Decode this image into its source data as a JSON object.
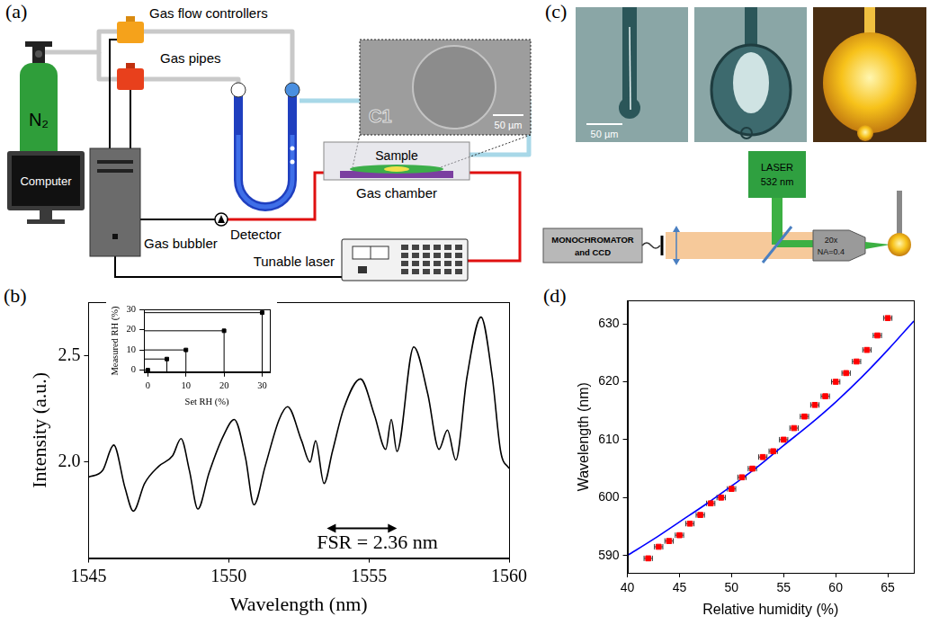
{
  "panel_labels": [
    "(a)",
    "(b)",
    "(c)",
    "(d)"
  ],
  "diagram": {
    "a": {
      "gas_flow_controllers": "Gas flow controllers",
      "cylinder": "N₂",
      "gas_pipes": "Gas pipes",
      "computer": "Computer",
      "gas_bubbler": "Gas bubbler",
      "detector": "Detector",
      "sample": "Sample",
      "gas_chamber": "Gas chamber",
      "tunable_laser": "Tunable laser",
      "sem_label": "C1",
      "sem_scale_bar": "50 µm"
    },
    "c": {
      "photo_scale_bar": "50 µm",
      "laser": [
        "LASER",
        "532 nm"
      ],
      "monochromator": [
        "MONOCHROMATOR",
        "and CCD"
      ],
      "objective": [
        "20x",
        "NA=0.4"
      ]
    }
  },
  "chart_data": [
    {
      "type": "line",
      "color": "#000000",
      "grid": false,
      "x_label": "Wavelength (nm)",
      "y_label": "Intensity (a.u.)",
      "x": [
        1545,
        1545.5,
        1545.9,
        1546.3,
        1546.6,
        1547.0,
        1547.5,
        1548.0,
        1548.3,
        1548.6,
        1548.9,
        1549.3,
        1549.8,
        1550.2,
        1550.6,
        1550.9,
        1551.3,
        1551.8,
        1552.1,
        1552.6,
        1552.9,
        1553.1,
        1553.4,
        1553.7,
        1554.1,
        1554.7,
        1555.2,
        1555.6,
        1555.8,
        1556.0,
        1556.6,
        1557.1,
        1557.5,
        1557.8,
        1558.1,
        1558.5,
        1559.0,
        1559.4,
        1559.7,
        1560
      ],
      "values": [
        1.93,
        1.96,
        2.08,
        1.88,
        1.77,
        1.9,
        1.98,
        2.03,
        2.11,
        1.96,
        1.78,
        1.95,
        2.12,
        2.2,
        2.02,
        1.8,
        1.98,
        2.2,
        2.26,
        2.1,
        2.0,
        2.1,
        1.9,
        2.05,
        2.25,
        2.39,
        2.22,
        2.06,
        2.2,
        2.05,
        2.54,
        2.32,
        2.06,
        2.15,
        2.01,
        2.4,
        2.68,
        2.4,
        2.05,
        1.97
      ],
      "xlim": [
        1545,
        1560
      ],
      "xticks": [
        1545,
        1550,
        1555,
        1560
      ],
      "ylim": [
        1.55,
        2.75
      ],
      "yticks": [
        {
          "value": 2,
          "label": "2.0"
        },
        2.5
      ],
      "annotations": [
        {
          "text": "FSR = 2.36 nm",
          "x": 1555.3,
          "y": 1.62,
          "arrow_x": [
            1553.5,
            1556.0
          ],
          "arrow_y": 1.69
        }
      ]
    },
    {
      "type": "scatter",
      "color": "#000000",
      "marker": "square",
      "line_style": "drop_lines",
      "grid": false,
      "x_label": "Set RH (%)",
      "y_label": "Measured RH (%)",
      "x": [
        0,
        5,
        10,
        20,
        30
      ],
      "values": [
        0,
        5.5,
        10,
        19.5,
        28.5
      ],
      "xlim": [
        -1,
        32
      ],
      "xticks": [
        0,
        10,
        20,
        30
      ],
      "ylim": [
        -1,
        30
      ],
      "yticks": [
        0,
        10,
        20,
        30
      ]
    },
    {
      "type": "scatter",
      "grid": false,
      "x_label": "Relative humidity (%)",
      "y_label": "Wavelength (nm)",
      "xlim": [
        40,
        67.5
      ],
      "xticks": [
        40,
        45,
        50,
        55,
        60,
        65
      ],
      "ylim": [
        587,
        634
      ],
      "yticks": [
        590,
        600,
        610,
        620,
        630
      ],
      "series": [
        {
          "type": "scatter",
          "color": "#ff0000",
          "marker": "square",
          "x": [
            42,
            43,
            44,
            45,
            46,
            47,
            48,
            49,
            50,
            51,
            52,
            53,
            54,
            55,
            56,
            57,
            58,
            59,
            60,
            61,
            62,
            63,
            64,
            65
          ],
          "values": [
            589.5,
            591.5,
            592.5,
            593.5,
            595.5,
            597,
            599,
            600,
            601.5,
            603.5,
            605,
            607,
            608,
            610,
            612,
            614,
            616,
            617.5,
            620,
            621.5,
            623.5,
            625.5,
            628,
            631
          ],
          "x_error": [
            0.4,
            0.4,
            0.4,
            0.4,
            0.4,
            0.4,
            0.4,
            0.4,
            0.4,
            0.4,
            0.4,
            0.4,
            0.4,
            0.4,
            0.4,
            0.4,
            0.4,
            0.4,
            0.4,
            0.4,
            0.4,
            0.4,
            0.4,
            0.4
          ]
        },
        {
          "type": "line",
          "color": "#0000ff",
          "x": [
            40,
            42.5,
            45,
            47.5,
            50,
            52.5,
            55,
            57.5,
            60,
            62.5,
            65,
            67.5
          ],
          "values": [
            590,
            592.8,
            595.8,
            598.8,
            602,
            605.3,
            609,
            612.6,
            616.5,
            620.8,
            625.5,
            630.5
          ]
        }
      ]
    }
  ]
}
